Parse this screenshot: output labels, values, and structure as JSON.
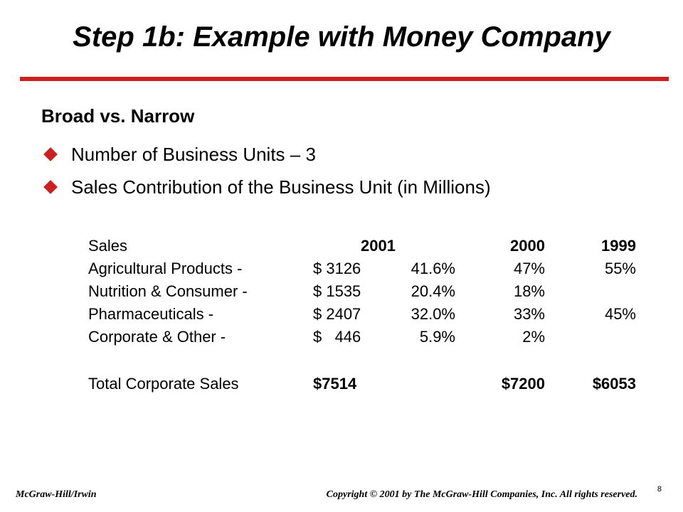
{
  "slide": {
    "title": "Step  1b:  Example with Money Company",
    "subheading": "Broad vs. Narrow",
    "bullets": [
      "Number of Business Units – 3",
      "Sales Contribution of the Business Unit (in Millions)"
    ],
    "accent_color": "#cc1f1f",
    "bullet_icon": "diamond-bullet-icon"
  },
  "table": {
    "header": {
      "label": "Sales",
      "y2001": "2001",
      "y2000": "2000",
      "y1999": "1999"
    },
    "rows": [
      {
        "label": "Agricultural Products -",
        "amount": "$ 3126",
        "pct2001": "41.6%",
        "pct2000": "47%",
        "pct1999": "55%"
      },
      {
        "label": "Nutrition & Consumer -",
        "amount": "$ 1535",
        "pct2001": "20.4%",
        "pct2000": "18%",
        "pct1999": ""
      },
      {
        "label": "Pharmaceuticals -",
        "amount": "$ 2407",
        "pct2001": "32.0%",
        "pct2000": "33%",
        "pct1999": "45%"
      },
      {
        "label": "Corporate & Other -",
        "amount": "$   446",
        "pct2001": "5.9%",
        "pct2000": "2%",
        "pct1999": ""
      }
    ],
    "total": {
      "label": "Total Corporate Sales",
      "t2001": "$7514",
      "t2000": "$7200",
      "t1999": "$6053"
    }
  },
  "footer": {
    "left": "McGraw-Hill/Irwin",
    "right": "Copyright © 2001 by The McGraw-Hill Companies, Inc.  All rights reserved.",
    "page": "8"
  }
}
